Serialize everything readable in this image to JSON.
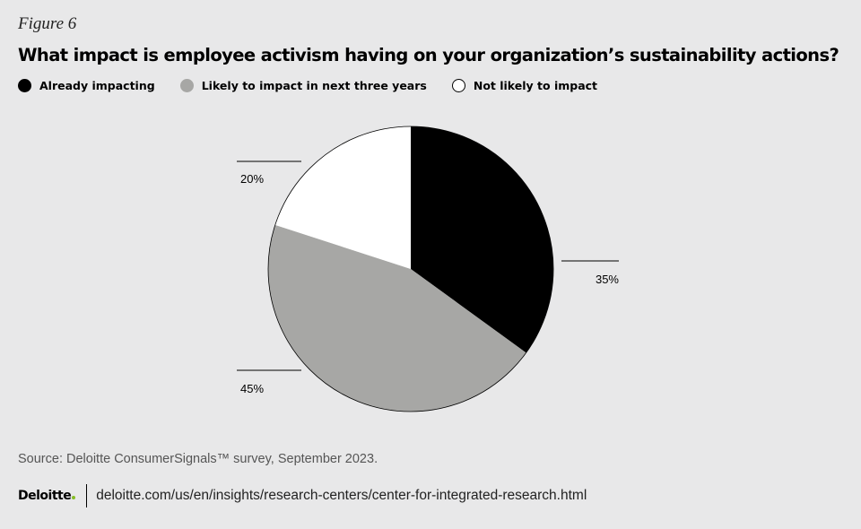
{
  "figure_label": "Figure 6",
  "chart_data": {
    "type": "pie",
    "title": "What impact is employee activism having on your organization’s sustainability actions?",
    "legend_placement": "top-left",
    "slices": [
      {
        "label": "Already impacting",
        "value": 35,
        "value_label": "35%",
        "color": "#000000"
      },
      {
        "label": "Likely to impact in next three years",
        "value": 45,
        "value_label": "45%",
        "color": "#a7a7a5"
      },
      {
        "label": "Not likely to impact",
        "value": 20,
        "value_label": "20%",
        "color": "#ffffff"
      }
    ]
  },
  "source": "Source: Deloitte ConsumerSignals™ survey, September 2023.",
  "footer": {
    "logo_text": "Deloitte",
    "url": "deloitte.com/us/en/insights/research-centers/center-for-integrated-research.html"
  }
}
